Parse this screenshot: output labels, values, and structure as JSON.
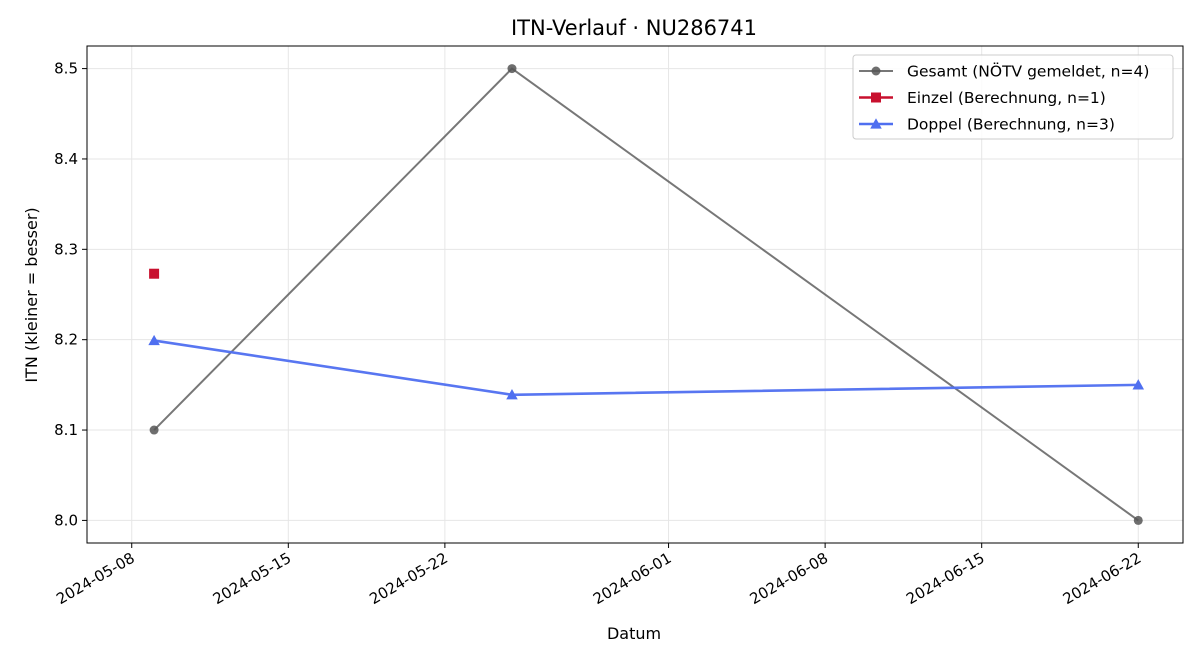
{
  "chart_data": {
    "type": "line",
    "title": "ITN-Verlauf · NU286741",
    "xlabel": "Datum",
    "ylabel": "ITN  (kleiner = besser)",
    "x_type": "date",
    "xlim": [
      "2024-05-06",
      "2024-06-24"
    ],
    "ylim": [
      7.975,
      8.525
    ],
    "x_ticks": [
      "2024-05-08",
      "2024-05-15",
      "2024-05-22",
      "2024-06-01",
      "2024-06-08",
      "2024-06-15",
      "2024-06-22"
    ],
    "y_ticks": [
      8.0,
      8.1,
      8.2,
      8.3,
      8.4,
      8.5
    ],
    "y_tick_labels": [
      "8.0",
      "8.1",
      "8.2",
      "8.3",
      "8.4",
      "8.5"
    ],
    "grid": true,
    "legend_position": "top-right",
    "series": [
      {
        "name": "Gesamt (NÖTV gemeldet, n=4)",
        "color": "#555555",
        "marker": "circle",
        "line": true,
        "points": [
          {
            "x": "2024-05-09",
            "y": 8.1
          },
          {
            "x": "2024-05-25",
            "y": 8.5
          },
          {
            "x": "2024-06-22",
            "y": 8.0
          }
        ]
      },
      {
        "name": "Einzel (Berechnung, n=1)",
        "color": "#c8102e",
        "marker": "square",
        "line": false,
        "points": [
          {
            "x": "2024-05-09",
            "y": 8.273
          }
        ]
      },
      {
        "name": "Doppel (Berechnung, n=3)",
        "color": "#4f6ff0",
        "marker": "triangle",
        "line": true,
        "points": [
          {
            "x": "2024-05-09",
            "y": 8.199
          },
          {
            "x": "2024-05-25",
            "y": 8.139
          },
          {
            "x": "2024-06-22",
            "y": 8.15
          }
        ]
      }
    ]
  }
}
